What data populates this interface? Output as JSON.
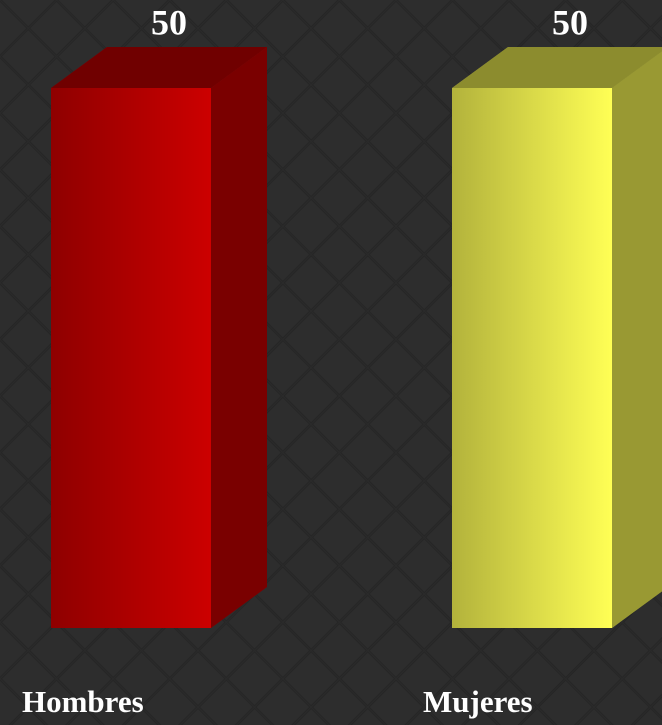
{
  "chart_data": {
    "type": "bar3d",
    "categories": [
      "Hombres",
      "Mujeres"
    ],
    "values": [
      50,
      50
    ],
    "colors": [
      "#cc0000",
      "#ffff55"
    ]
  }
}
